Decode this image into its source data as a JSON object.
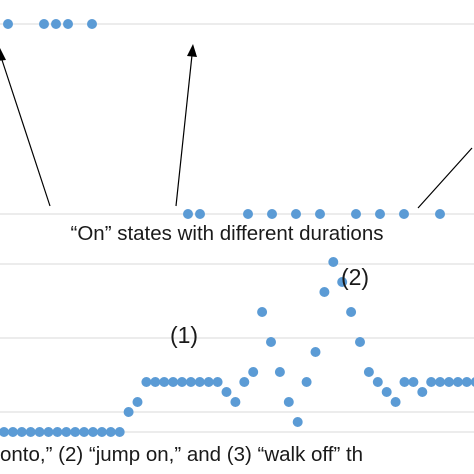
{
  "annotations": {
    "top_caption": "“On” states with different durations",
    "label_1": "(1)",
    "label_2": "(2)",
    "bottom_caption": "onto,” (2) “jump on,” and (3) “walk off” th"
  },
  "colors": {
    "marker": "#5b9bd5",
    "gridline": "#d9d9d9",
    "arrow": "#000000",
    "text": "#1a1a1a"
  },
  "chart_data": [
    {
      "type": "scatter",
      "panel": "top",
      "description_of_states": "binary on/off states",
      "grid": "horizontal lines at the two states",
      "series": [
        {
          "x": [
            1,
            4,
            5,
            6,
            8,
            16,
            17,
            21,
            23,
            25,
            27,
            30,
            32,
            34,
            37
          ],
          "y": [
            1,
            1,
            1,
            1,
            1,
            0,
            0,
            0,
            0,
            0,
            0,
            0,
            0,
            0,
            0
          ]
        }
      ],
      "ylim": [
        0,
        1
      ]
    },
    {
      "type": "scatter",
      "panel": "bottom",
      "grid": "horizontal gridlines",
      "series": [
        {
          "x": [
            0,
            1,
            2,
            3,
            4,
            5,
            6,
            7,
            8,
            9,
            10,
            11,
            12,
            13,
            14,
            15,
            16,
            17,
            18,
            19,
            20,
            21,
            22,
            23,
            24,
            25,
            26,
            27,
            28,
            29,
            30,
            31,
            32,
            33,
            34,
            35,
            36,
            37,
            38,
            39,
            40,
            41,
            42,
            43,
            44,
            45,
            46,
            47,
            48,
            49,
            50,
            51,
            52,
            53
          ],
          "y": [
            0,
            0,
            0,
            0,
            0,
            0,
            0,
            0,
            0,
            0,
            0,
            0,
            0,
            0,
            0.2,
            0.3,
            0.5,
            0.5,
            0.5,
            0.5,
            0.5,
            0.5,
            0.5,
            0.5,
            0.5,
            0.4,
            0.3,
            0.5,
            0.6,
            1.2,
            0.9,
            0.6,
            0.3,
            0.1,
            0.5,
            0.8,
            1.4,
            1.7,
            1.5,
            1.2,
            0.9,
            0.6,
            0.5,
            0.4,
            0.3,
            0.5,
            0.5,
            0.4,
            0.5,
            0.5,
            0.5,
            0.5,
            0.5,
            0.5
          ]
        }
      ]
    }
  ]
}
